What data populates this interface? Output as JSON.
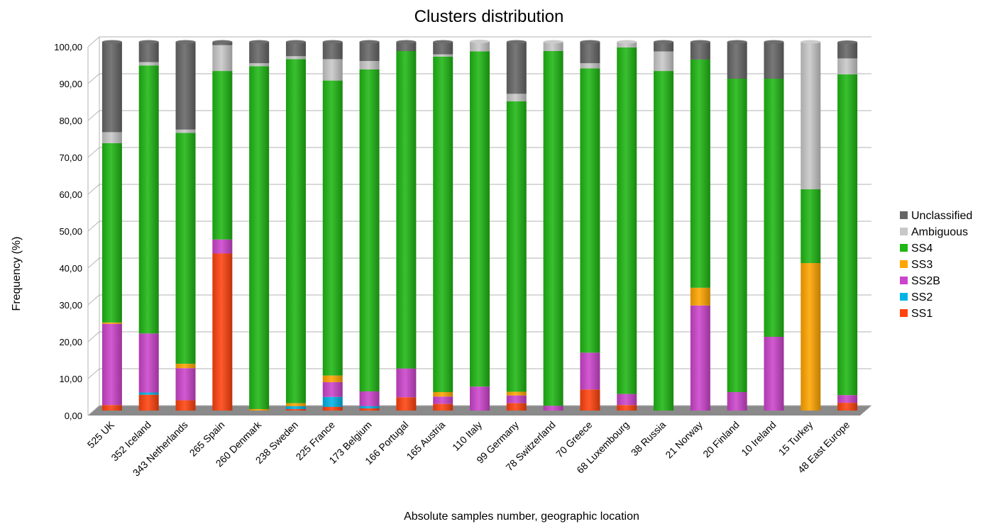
{
  "chart_data": {
    "type": "bar",
    "stacked": true,
    "title": "Clusters distribution",
    "xlabel": "Absolute samples number, geographic location",
    "ylabel": "Frequency (%)",
    "ylim": [
      0,
      100
    ],
    "yticks": [
      "0,00",
      "10,00",
      "20,00",
      "30,00",
      "40,00",
      "50,00",
      "60,00",
      "70,00",
      "80,00",
      "90,00",
      "100,00"
    ],
    "grid": true,
    "legend_position": "right",
    "categories": [
      "525 UK",
      "352 Iceland",
      "343 Netherlands",
      "265 Spain",
      "260 Denmark",
      "238 Sweden",
      "225 France",
      "173 Belgium",
      "166 Portugal",
      "165 Austria",
      "110 Italy",
      "99 Germany",
      "78 Switzerland",
      "70 Greece",
      "68 Luxembourg",
      "38 Russia",
      "21 Norway",
      "20 Finland",
      "10 Ireland",
      "15 Turkey",
      "48 East Europe"
    ],
    "series": [
      {
        "name": "SS1",
        "color": "#ff420e",
        "values": [
          1.5,
          4.3,
          2.8,
          42.6,
          0.0,
          0.4,
          1.0,
          0.6,
          3.6,
          1.8,
          0.0,
          2.0,
          0.0,
          5.7,
          1.5,
          0.0,
          0.0,
          0.0,
          0.0,
          0.0,
          2.1
        ]
      },
      {
        "name": "SS2",
        "color": "#00b3e6",
        "values": [
          0.0,
          0.6,
          0.0,
          0.0,
          0.0,
          0.8,
          2.7,
          0.6,
          0.0,
          0.0,
          0.0,
          0.0,
          0.0,
          0.0,
          0.0,
          0.0,
          0.0,
          0.0,
          0.0,
          0.0,
          0.0
        ]
      },
      {
        "name": "SS2B",
        "color": "#cc44cc",
        "values": [
          22.0,
          16.0,
          8.7,
          3.8,
          0.0,
          0.0,
          4.0,
          4.0,
          7.8,
          2.0,
          6.5,
          2.1,
          1.3,
          10.0,
          3.0,
          0.0,
          28.5,
          5.0,
          20.0,
          0.0,
          2.1
        ]
      },
      {
        "name": "SS3",
        "color": "#ffa500",
        "values": [
          0.4,
          0.0,
          1.2,
          0.0,
          0.4,
          0.8,
          1.8,
          0.0,
          0.0,
          1.2,
          0.0,
          1.0,
          0.0,
          0.0,
          0.0,
          0.0,
          4.8,
          0.0,
          0.0,
          40.0,
          0.0
        ]
      },
      {
        "name": "SS4",
        "color": "#1fb714",
        "values": [
          48.6,
          72.7,
          62.6,
          45.7,
          93.0,
          93.3,
          80.0,
          87.3,
          86.1,
          91.0,
          90.9,
          78.8,
          96.2,
          77.1,
          94.0,
          92.1,
          61.9,
          85.0,
          70.0,
          20.0,
          87.0
        ]
      },
      {
        "name": "Ambiguous",
        "color": "#c8c8c8",
        "values": [
          3.0,
          0.9,
          0.9,
          7.0,
          0.8,
          0.8,
          5.8,
          2.3,
          0.0,
          0.6,
          2.7,
          2.0,
          2.5,
          1.4,
          1.5,
          5.3,
          0.0,
          0.0,
          0.0,
          40.0,
          4.3
        ]
      },
      {
        "name": "Unclassified",
        "color": "#666666",
        "values": [
          24.5,
          5.5,
          23.8,
          0.9,
          5.8,
          3.9,
          4.7,
          5.2,
          2.5,
          3.4,
          0.0,
          14.1,
          0.0,
          5.8,
          0.0,
          2.6,
          4.8,
          10.0,
          10.0,
          0.0,
          4.4
        ]
      }
    ]
  }
}
